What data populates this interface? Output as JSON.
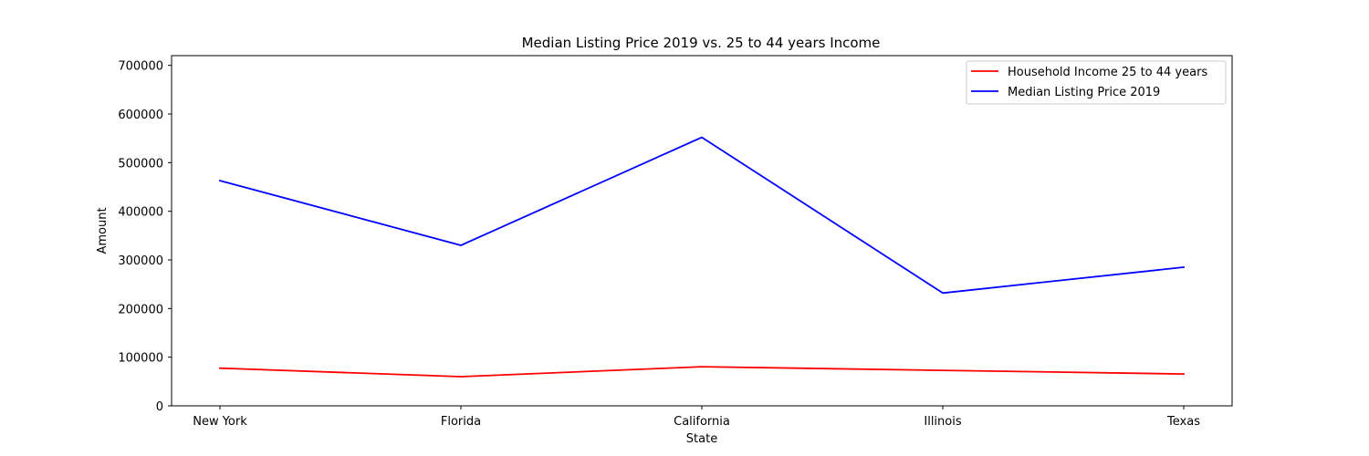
{
  "chart_data": {
    "type": "line",
    "title": "Median Listing Price 2019 vs. 25 to 44 years Income",
    "xlabel": "State",
    "ylabel": "Amount",
    "categories": [
      "New York",
      "Florida",
      "California",
      "Illinois",
      "Texas"
    ],
    "ylim": [
      0,
      720000
    ],
    "yticks": [
      0,
      100000,
      200000,
      300000,
      400000,
      500000,
      600000,
      700000
    ],
    "ytick_labels": [
      "0",
      "100000",
      "200000",
      "300000",
      "400000",
      "500000",
      "600000",
      "700000"
    ],
    "grid": false,
    "legend_position": "top-right",
    "series": [
      {
        "name": "Household Income 25 to 44 years",
        "color": "#ff0000",
        "values": [
          77500,
          60000,
          80500,
          73000,
          65500
        ]
      },
      {
        "name": "Median Listing Price 2019",
        "color": "#0000ff",
        "values": [
          463000,
          330000,
          552000,
          232000,
          285000
        ]
      }
    ]
  }
}
